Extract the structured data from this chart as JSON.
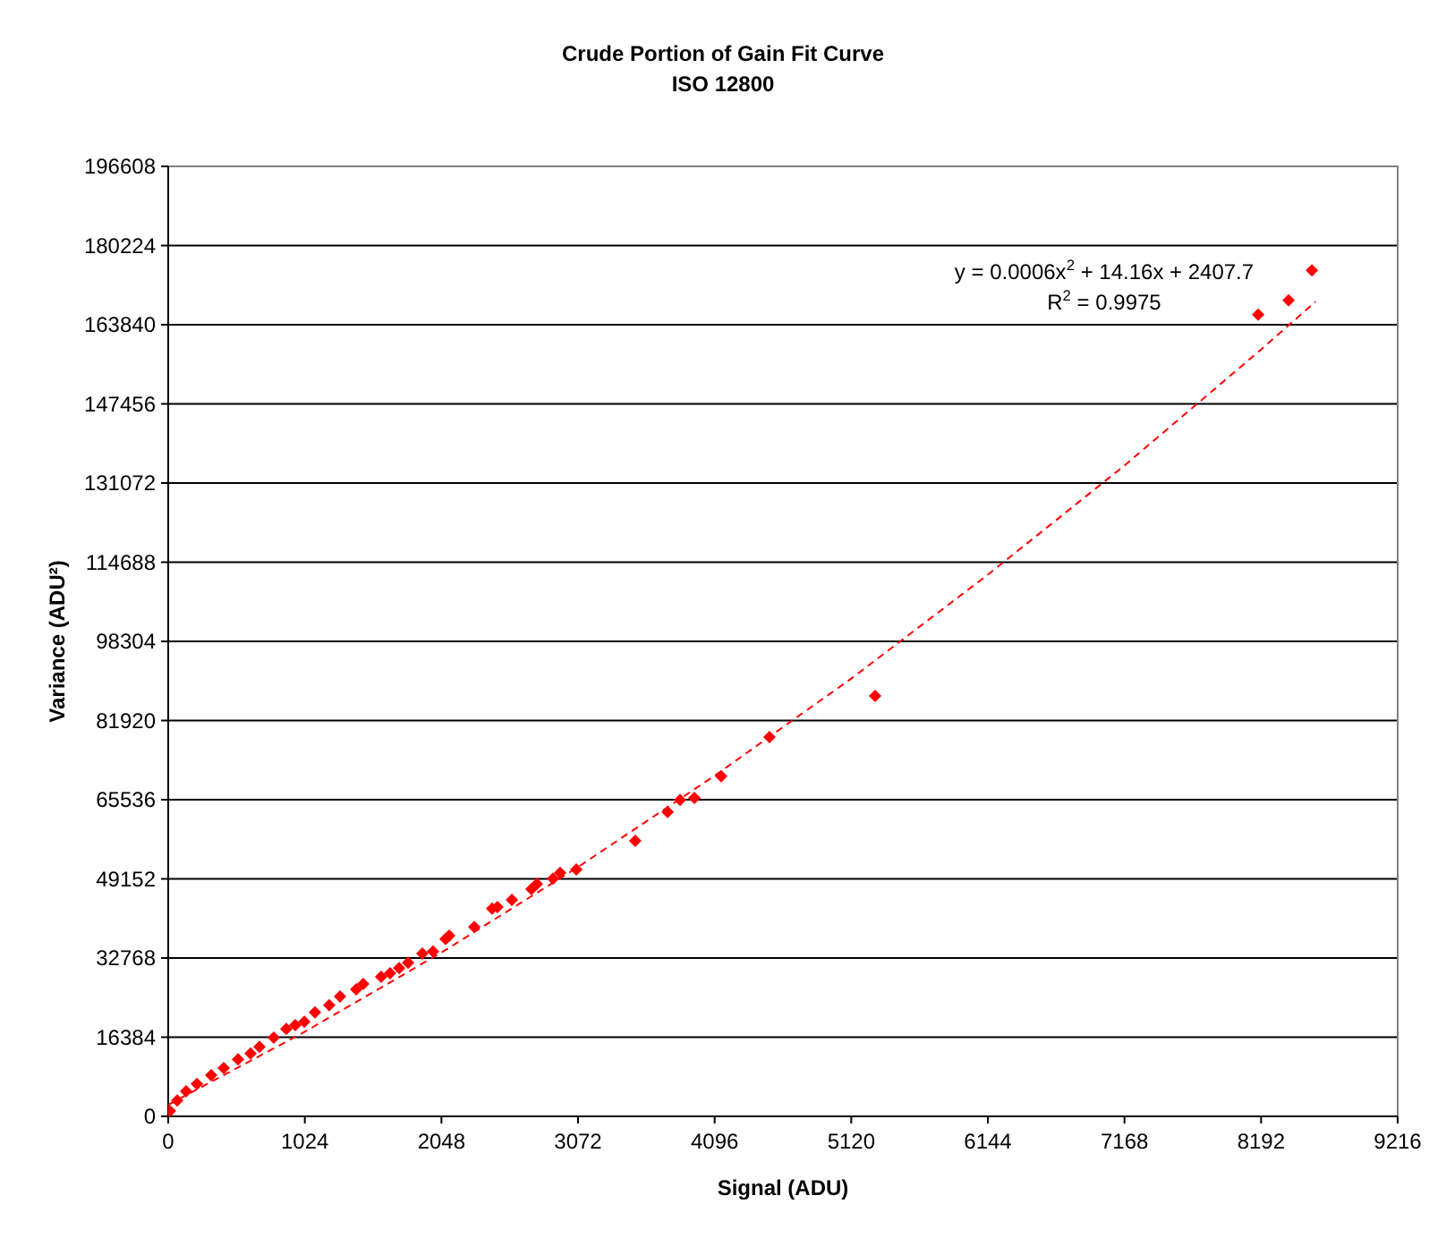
{
  "chart_data": {
    "type": "scatter",
    "title": "Crude Portion of Gain Fit Curve",
    "subtitle": "ISO 12800",
    "xlabel": "Signal (ADU)",
    "ylabel": "Variance (ADU²)",
    "annotations": [
      "y = 0.0006x$^{2}$ + 14.16x + 2407.7",
      "R$^{2}$ = 0.9975"
    ],
    "xlim": [
      0,
      9216
    ],
    "xticks": [
      0,
      1024,
      2048,
      3072,
      4096,
      5120,
      6144,
      7168,
      8192,
      9216
    ],
    "ylim": [
      0,
      196608
    ],
    "yticks": [
      0,
      16384,
      32768,
      49152,
      65536,
      81920,
      98304,
      114688,
      131072,
      147456,
      163840,
      180224,
      196608
    ],
    "grid": "y",
    "series": [
      {
        "color": "#ff0000",
        "marker": "diamond",
        "x": [
          13,
          67,
          134,
          215,
          322,
          416,
          523,
          617,
          684,
          791,
          885,
          952,
          1020,
          1100,
          1207,
          1288,
          1409,
          1462,
          1596,
          1663,
          1731,
          1798,
          1905,
          1985,
          2079,
          2106,
          2294,
          2428,
          2468,
          2576,
          2723,
          2763,
          2884,
          2938,
          3059,
          3501,
          3743,
          3837,
          3944,
          4145,
          4507,
          5299,
          8170,
          8398,
          8573
        ],
        "values": [
          1100,
          3300,
          5200,
          6700,
          8500,
          10000,
          11800,
          13000,
          14400,
          16300,
          18100,
          18900,
          19600,
          21500,
          23000,
          24800,
          26300,
          27400,
          28900,
          29600,
          30700,
          31800,
          33700,
          34100,
          36700,
          37400,
          39200,
          43000,
          43300,
          44800,
          47000,
          48100,
          49200,
          50400,
          51100,
          57000,
          63000,
          65500,
          65900,
          70400,
          78500,
          87000,
          165900,
          168900,
          175100
        ]
      },
      {
        "type": "line",
        "color": "#ff0000",
        "line_style": "dashed",
        "x": [
          0,
          1024,
          2048,
          3072,
          4096,
          5120,
          6144,
          7168,
          8192,
          8600
        ],
        "values": [
          2400,
          17500,
          33900,
          51600,
          70500,
          90600,
          112100,
          134700,
          158700,
          168600
        ]
      }
    ]
  }
}
